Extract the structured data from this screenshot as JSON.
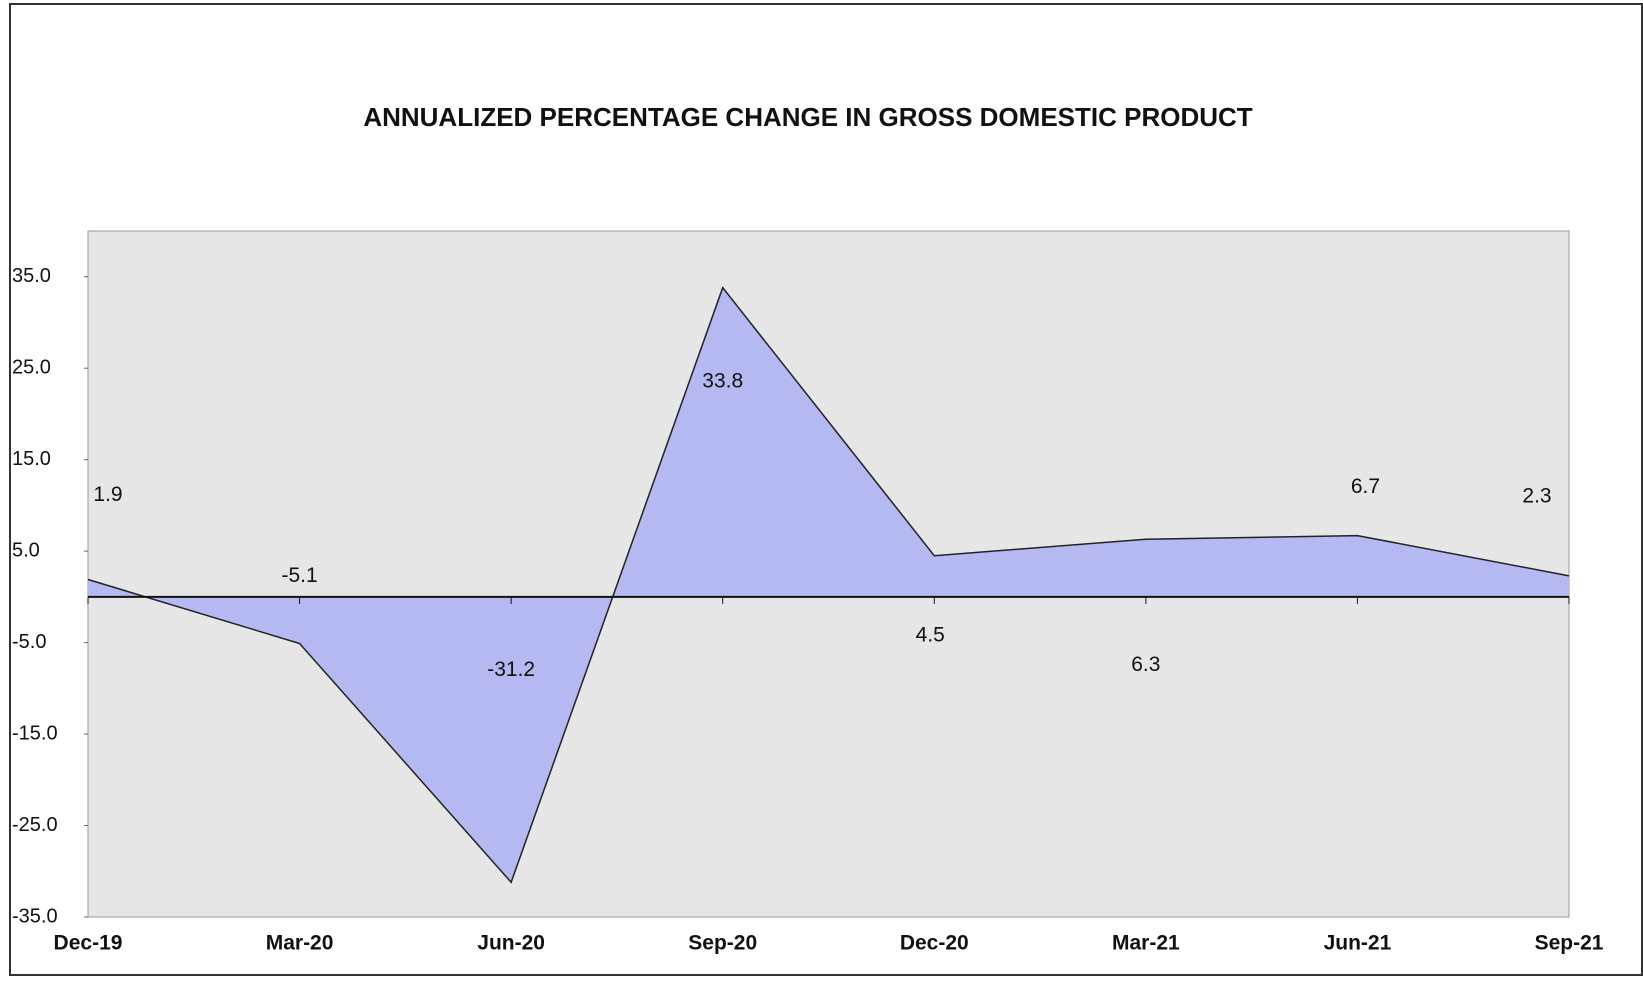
{
  "chart_data": {
    "type": "area",
    "title": "ANNUALIZED PERCENTAGE CHANGE IN GROSS DOMESTIC PRODUCT",
    "categories": [
      "Dec-19",
      "Mar-20",
      "Jun-20",
      "Sep-20",
      "Dec-20",
      "Mar-21",
      "Jun-21",
      "Sep-21"
    ],
    "values": [
      1.9,
      -5.1,
      -31.2,
      33.8,
      4.5,
      6.3,
      6.7,
      2.3
    ],
    "color": "#b4b9f2",
    "ylim": [
      -35,
      40
    ],
    "yticks": [
      {
        "value": -35,
        "label": "-35.0"
      },
      {
        "value": -25,
        "label": "-25.0"
      },
      {
        "value": -15,
        "label": "-15.0"
      },
      {
        "value": -5,
        "label": "-5.0"
      },
      {
        "value": 5,
        "label": "5.0"
      },
      {
        "value": 15,
        "label": "15.0"
      },
      {
        "value": 25,
        "label": "25.0"
      },
      {
        "value": 35,
        "label": "35.0"
      }
    ],
    "grid": false
  }
}
